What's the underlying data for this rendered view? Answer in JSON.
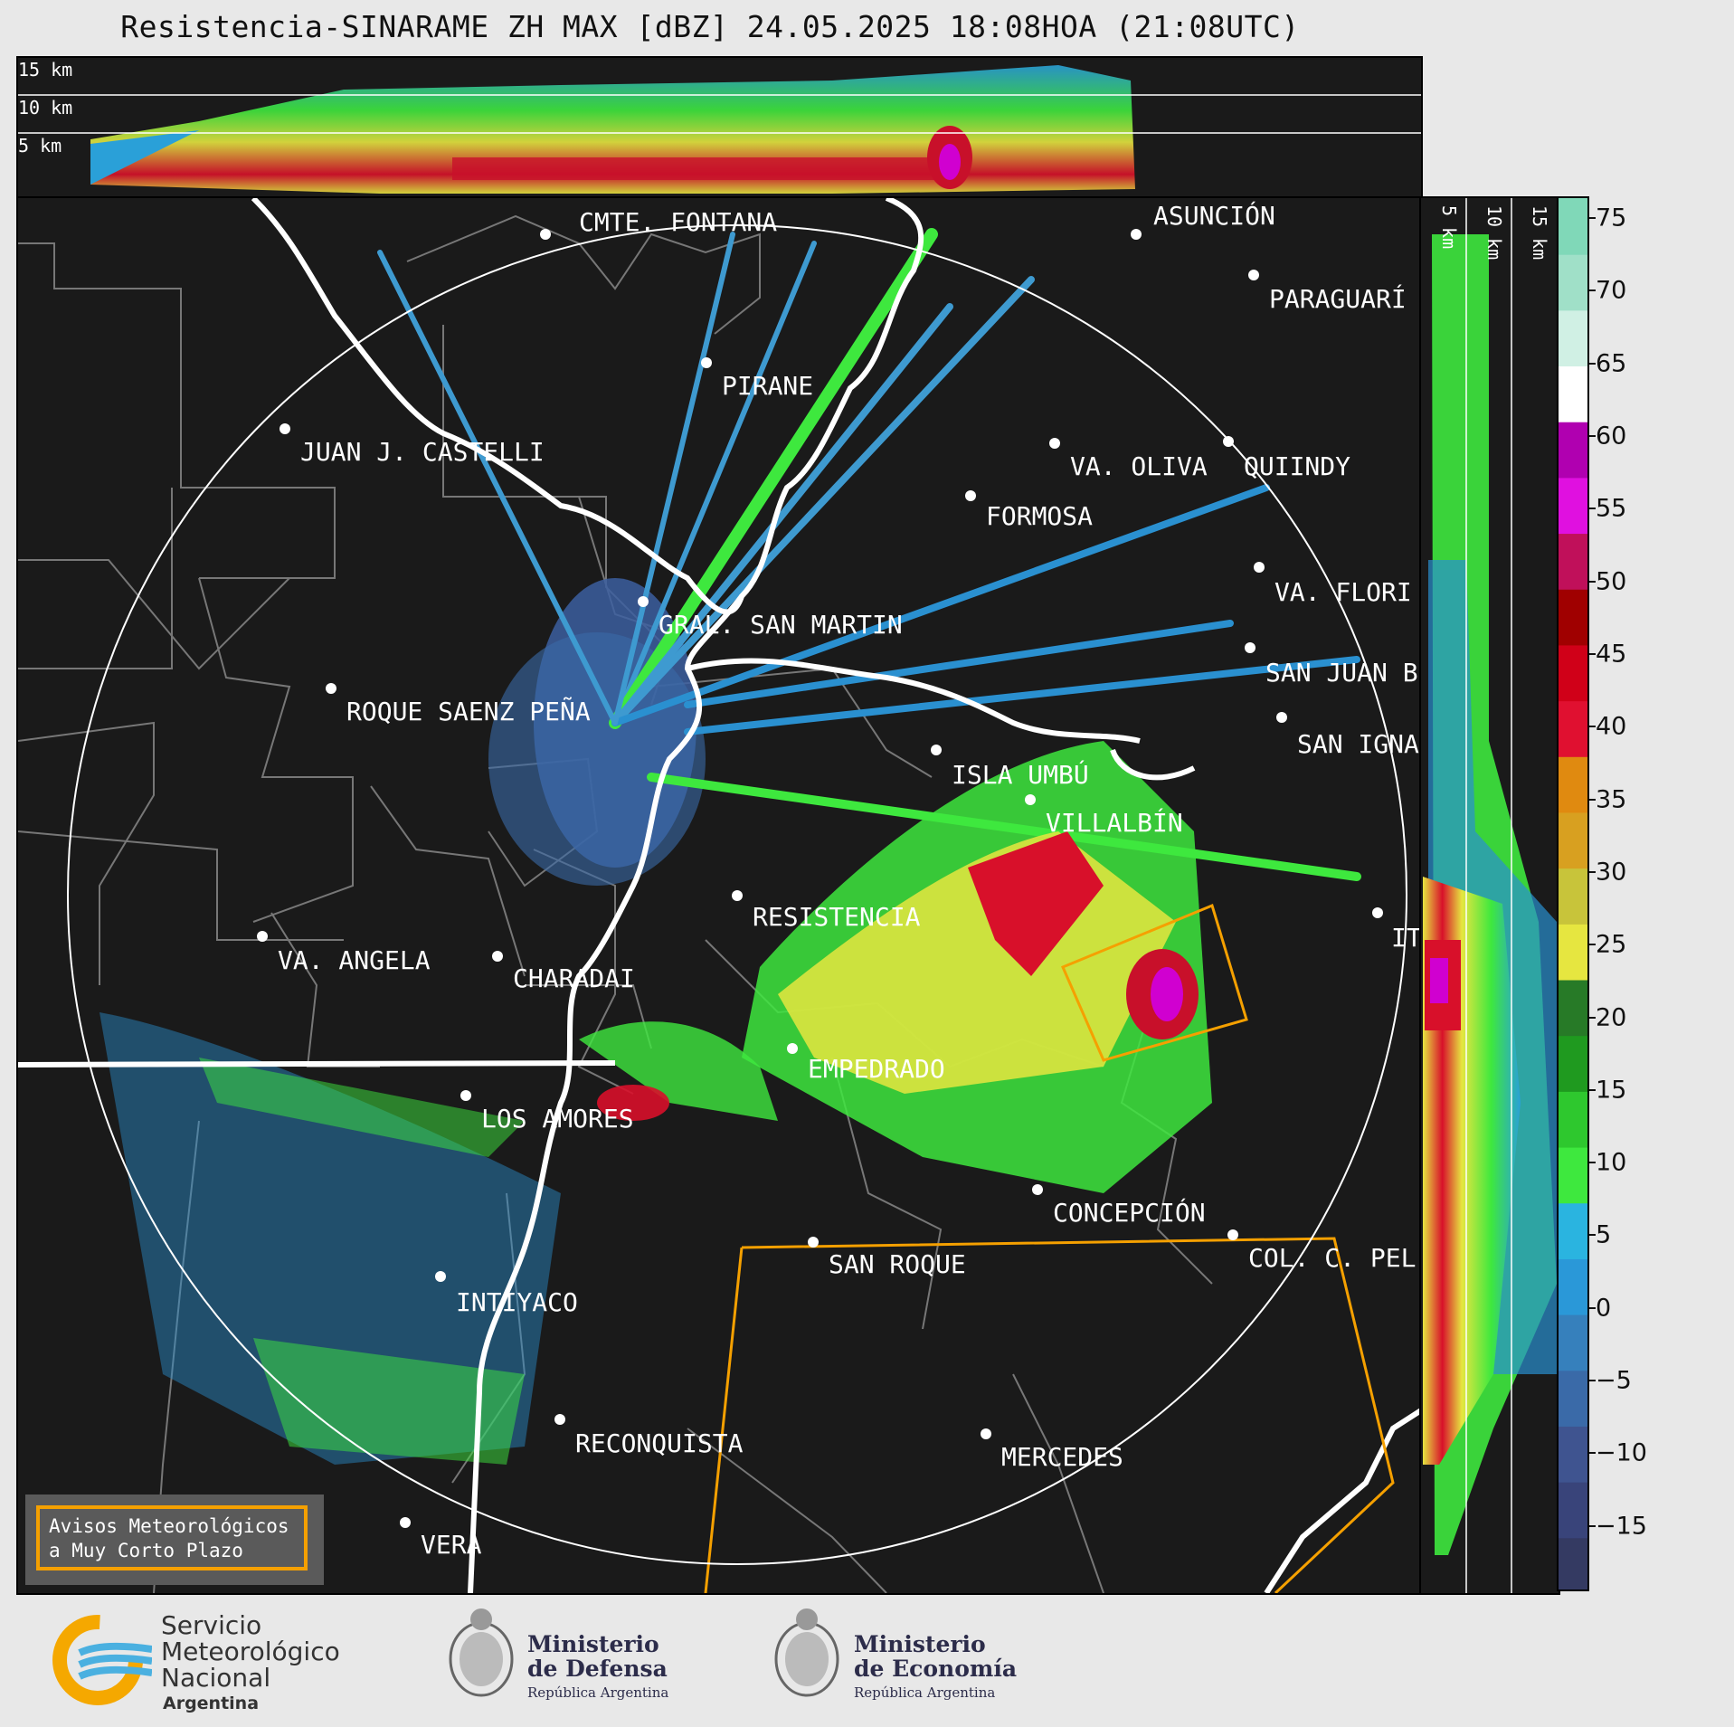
{
  "title": "Resistencia-SINARAME ZH MAX [dBZ] 24.05.2025 18:08HOA (21:08UTC)",
  "height_labels": {
    "h15": "15 km",
    "h10": "10 km",
    "h5": "5 km"
  },
  "cities": [
    {
      "name": "CMTE. FONTANA"
    },
    {
      "name": "ASUNCIÓN"
    },
    {
      "name": "PARAGUARÍ"
    },
    {
      "name": "PIRANE"
    },
    {
      "name": "JUAN J. CASTELLI"
    },
    {
      "name": "VA. OLIVA"
    },
    {
      "name": "QUIINDY"
    },
    {
      "name": "FORMOSA"
    },
    {
      "name": "VA. FLORI"
    },
    {
      "name": "GRAL. SAN MARTIN"
    },
    {
      "name": "SAN JUAN B"
    },
    {
      "name": "ROQUE SAENZ PEÑA"
    },
    {
      "name": "SAN IGNA"
    },
    {
      "name": "ISLA UMBÚ"
    },
    {
      "name": "VILLALBÍN"
    },
    {
      "name": "RESISTENCIA"
    },
    {
      "name": "VA. ANGELA"
    },
    {
      "name": "CHARADAI"
    },
    {
      "name": "IT"
    },
    {
      "name": "EMPEDRADO"
    },
    {
      "name": "LOS AMORES"
    },
    {
      "name": "CONCEPCIÓN"
    },
    {
      "name": "SAN ROQUE"
    },
    {
      "name": "COL. C. PEL"
    },
    {
      "name": "INTIYACO"
    },
    {
      "name": "RECONQUISTA"
    },
    {
      "name": "MERCEDES"
    },
    {
      "name": "VERA"
    }
  ],
  "colorbar": {
    "unit": "dBZ",
    "ticks": [
      "75",
      "70",
      "65",
      "60",
      "55",
      "50",
      "45",
      "40",
      "35",
      "30",
      "25",
      "20",
      "15",
      "10",
      "5",
      "0",
      "−5",
      "−10",
      "−15"
    ],
    "min": -19.5,
    "max": 76.5
  },
  "legend": {
    "line1": "Avisos Meteorológicos",
    "line2": "a Muy Corto Plazo"
  },
  "footer": {
    "smn": {
      "line1": "Servicio",
      "line2": "Meteorológico",
      "line3": "Nacional",
      "line4": "Argentina"
    },
    "defensa": {
      "line1": "Ministerio",
      "line2": "de Defensa",
      "line3": "República Argentina"
    },
    "economia": {
      "line1": "Ministerio",
      "line2": "de Economía",
      "line3": "República Argentina"
    }
  },
  "colors": {
    "warning_polygon": "#f5a000",
    "panel_bg": "#1a1a1a",
    "border": "#ffffff"
  }
}
